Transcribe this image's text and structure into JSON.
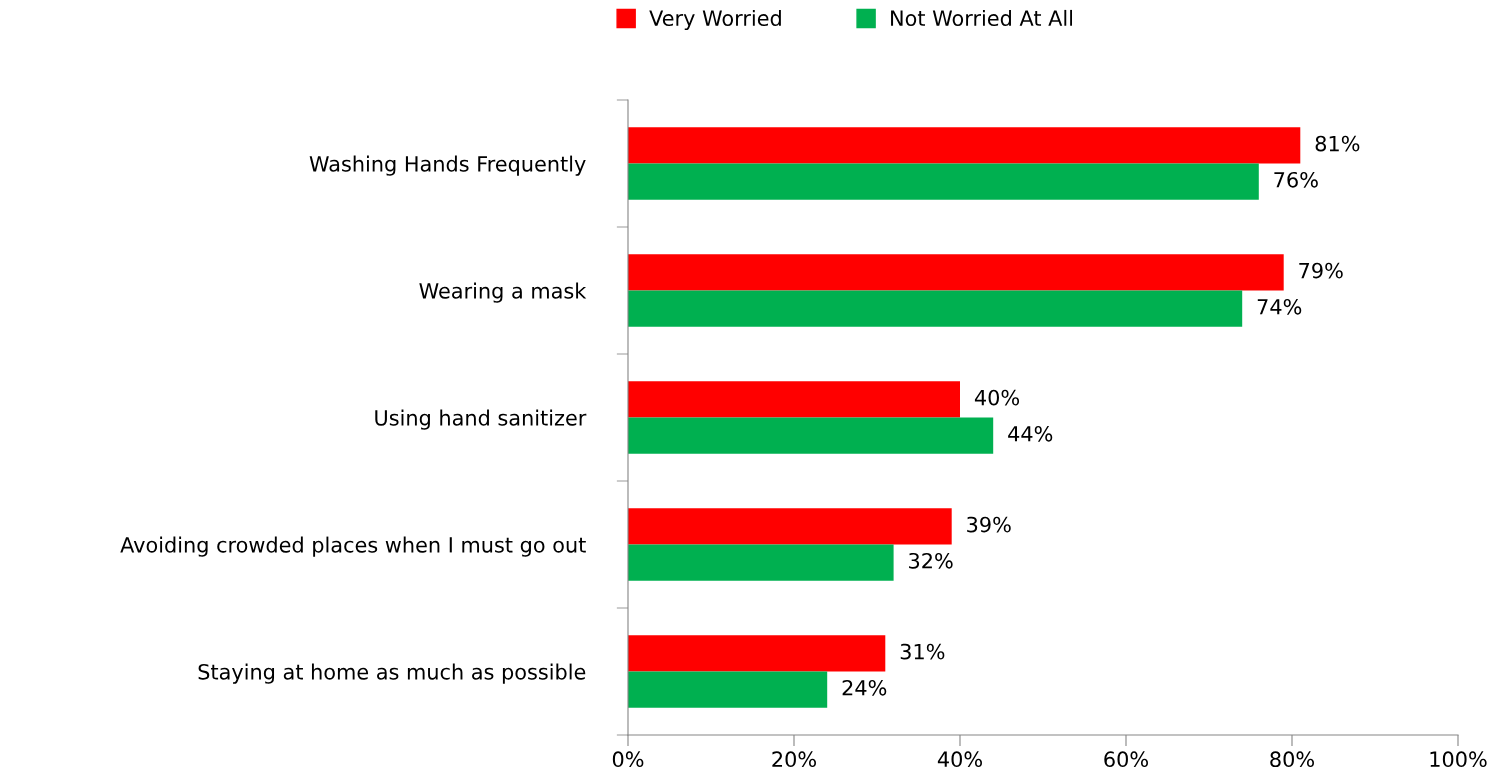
{
  "chart_data": {
    "type": "bar",
    "orientation": "horizontal",
    "categories": [
      "Washing Hands Frequently",
      "Wearing a mask",
      "Using hand sanitizer",
      "Avoiding crowded places when I must go out",
      "Staying at home as much as possible"
    ],
    "series": [
      {
        "name": "Very Worried",
        "color": "#ff0000",
        "values": [
          81,
          79,
          40,
          39,
          31
        ],
        "value_labels": [
          "81%",
          "79%",
          "40%",
          "39%",
          "31%"
        ]
      },
      {
        "name": "Not Worried At All",
        "color": "#00b050",
        "values": [
          76,
          74,
          44,
          32,
          24
        ],
        "value_labels": [
          "76%",
          "74%",
          "44%",
          "32%",
          "24%"
        ]
      }
    ],
    "xlim": [
      0,
      100
    ],
    "xticks": [
      {
        "value": 0,
        "label": "0%"
      },
      {
        "value": 20,
        "label": "20%"
      },
      {
        "value": 40,
        "label": "40%"
      },
      {
        "value": 60,
        "label": "60%"
      },
      {
        "value": 80,
        "label": "80%"
      },
      {
        "value": 100,
        "label": "100%"
      }
    ],
    "grid": false,
    "legend": "top"
  }
}
